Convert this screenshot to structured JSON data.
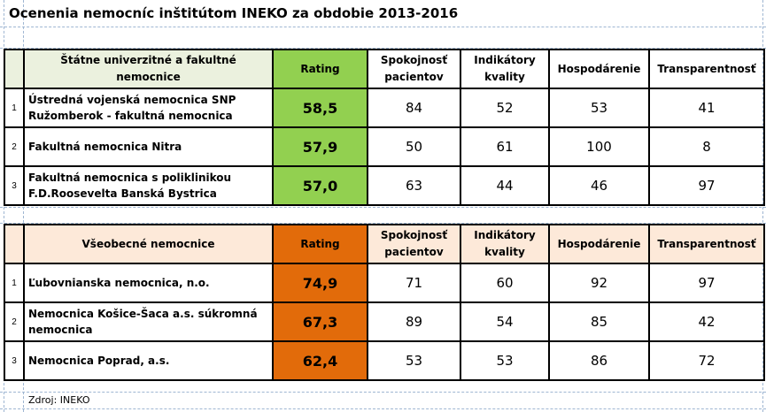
{
  "title": "Ocenenia nemocníc inštitútom INEKO  za obdobie 2013-2016",
  "columns": {
    "rating": "Rating",
    "satisfaction": "Spokojnosť pacientov",
    "quality": "Indikátory kvality",
    "economy": "Hospodárenie",
    "transparency": "Transparentnosť"
  },
  "colors": {
    "state_header_bg": "#ebf1de",
    "state_rating_bg": "#92d050",
    "general_header_bg": "#fde9d9",
    "general_rating_bg": "#e26b0a",
    "grid": "#9fb6d2"
  },
  "tables": [
    {
      "category": "Štátne univerzitné a fakultné nemocnice",
      "rows": [
        {
          "rank": "1",
          "name": "Ústredná vojenská nemocnica SNP Ružomberok - fakultná nemocnica",
          "rating": "58,5",
          "satisfaction": "84",
          "quality": "52",
          "economy": "53",
          "transparency": "41"
        },
        {
          "rank": "2",
          "name": "Fakultná nemocnica Nitra",
          "rating": "57,9",
          "satisfaction": "50",
          "quality": "61",
          "economy": "100",
          "transparency": "8"
        },
        {
          "rank": "3",
          "name": "Fakultná nemocnica s poliklinikou F.D.Roosevelta Banská Bystrica",
          "rating": "57,0",
          "satisfaction": "63",
          "quality": "44",
          "economy": "46",
          "transparency": "97"
        }
      ]
    },
    {
      "category": "Všeobecné nemocnice",
      "rows": [
        {
          "rank": "1",
          "name": "Ľubovnianska nemocnica, n.o.",
          "rating": "74,9",
          "satisfaction": "71",
          "quality": "60",
          "economy": "92",
          "transparency": "97"
        },
        {
          "rank": "2",
          "name": "Nemocnica Košice-Šaca a.s. súkromná nemocnica",
          "rating": "67,3",
          "satisfaction": "89",
          "quality": "54",
          "economy": "85",
          "transparency": "42"
        },
        {
          "rank": "3",
          "name": "Nemocnica Poprad, a.s.",
          "rating": "62,4",
          "satisfaction": "53",
          "quality": "53",
          "economy": "86",
          "transparency": "72"
        }
      ]
    }
  ],
  "source": "Zdroj: INEKO"
}
